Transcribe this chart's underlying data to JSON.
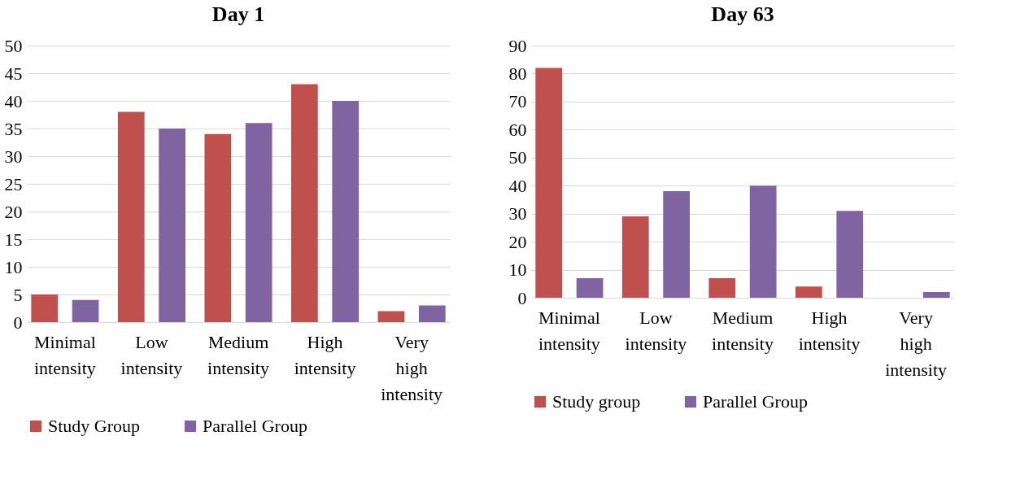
{
  "chart_data": [
    {
      "type": "bar",
      "title": "Day 1",
      "categories": [
        "Minimal intensity",
        "Low intensity",
        "Medium intensity",
        "High intensity",
        "Very high intensity"
      ],
      "series": [
        {
          "name": "Study Group",
          "color": "#c0504d",
          "values": [
            5,
            38,
            34,
            43,
            2
          ]
        },
        {
          "name": "Parallel Group",
          "color": "#8064a2",
          "values": [
            4,
            35,
            36,
            40,
            3
          ]
        }
      ],
      "ylim": [
        0,
        50
      ],
      "yticks": [
        0,
        5,
        10,
        15,
        20,
        25,
        30,
        35,
        40,
        45,
        50
      ],
      "grid": "y",
      "legend": "bottom"
    },
    {
      "type": "bar",
      "title": "Day 63",
      "categories": [
        "Minimal intensity",
        "Low intensity",
        "Medium intensity",
        "High intensity",
        "Very high intensity"
      ],
      "series": [
        {
          "name": "Study group",
          "color": "#c0504d",
          "values": [
            82,
            29,
            7,
            4,
            0
          ]
        },
        {
          "name": "Parallel Group",
          "color": "#8064a2",
          "values": [
            7,
            38,
            40,
            31,
            2
          ]
        }
      ],
      "ylim": [
        0,
        90
      ],
      "yticks": [
        0,
        10,
        20,
        30,
        40,
        50,
        60,
        70,
        80,
        90
      ],
      "grid": "y",
      "legend": "bottom"
    }
  ]
}
